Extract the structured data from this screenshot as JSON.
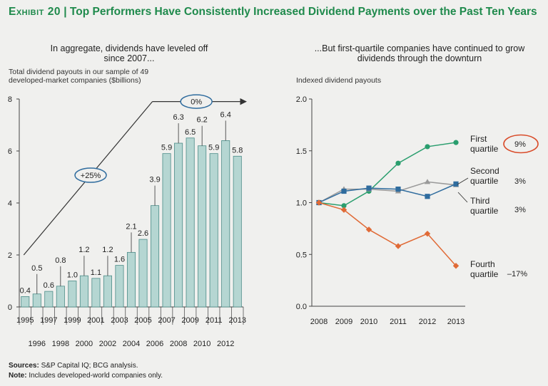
{
  "header": {
    "exhibit": "Exhibit 20",
    "separator": "|",
    "title": "Top Performers Have Consistently Increased Dividend Payments over the Past Ten Years"
  },
  "footer": {
    "sources_label": "Sources:",
    "sources_text": "S&P Capital IQ; BCG analysis.",
    "note_label": "Note:",
    "note_text": "Includes developed-world companies only."
  },
  "chart_data": [
    {
      "type": "bar",
      "title": "In aggregate, dividends have leveled off since 2007...",
      "ylabel": "Total dividend payouts in our sample of 49 developed-market companies ($billions)",
      "xlabel": "",
      "ylim": [
        0,
        8
      ],
      "yticks": [
        0,
        2,
        4,
        6,
        8
      ],
      "categories": [
        "1995",
        "1996",
        "1997",
        "1998",
        "1999",
        "2000",
        "2001",
        "2002",
        "2003",
        "2004",
        "2005",
        "2006",
        "2007",
        "2008",
        "2009",
        "2010",
        "2011",
        "2012",
        "2013"
      ],
      "values": [
        0.4,
        0.5,
        0.6,
        0.8,
        1.0,
        1.2,
        1.1,
        1.2,
        1.6,
        2.1,
        2.6,
        3.9,
        5.9,
        6.3,
        6.5,
        6.2,
        5.9,
        6.4,
        5.8
      ],
      "value_labels": [
        "0.4",
        "0.5",
        "0.6",
        "0.8",
        "1.0",
        "1.2",
        "1.1",
        "1.2",
        "1.6",
        "2.1",
        "2.6",
        "3.9",
        "5.9",
        "6.3",
        "6.5",
        "6.2",
        "5.9",
        "6.4",
        "5.8"
      ],
      "annotations": [
        {
          "text": "+25%",
          "from": "1995",
          "to": "2007"
        },
        {
          "text": "0%",
          "from": "2007",
          "to": "2013"
        }
      ],
      "bar_color": "#b5d6d2",
      "bar_edge": "#4c8c88"
    },
    {
      "type": "line",
      "title": "...But first-quartile companies have continued to grow dividends through the downturn",
      "ylabel": "Indexed dividend payouts",
      "ylim": [
        0.0,
        2.0
      ],
      "yticks": [
        "0.0",
        "0.5",
        "1.0",
        "1.5",
        "2.0"
      ],
      "x": [
        "2008",
        "2009",
        "2010",
        "2011",
        "2012",
        "2013"
      ],
      "series": [
        {
          "name": "First quartile",
          "line1": "First",
          "line2": "quartile",
          "growth": "9%",
          "values": [
            1.0,
            0.97,
            1.11,
            1.38,
            1.54,
            1.58
          ],
          "color": "#2a9e6e",
          "marker": "circle"
        },
        {
          "name": "Second quartile",
          "line1": "Second",
          "line2": "quartile",
          "growth": "3%",
          "values": [
            1.0,
            1.13,
            1.13,
            1.11,
            1.2,
            1.17
          ],
          "color": "#9a9a9a",
          "marker": "triangle"
        },
        {
          "name": "Third quartile",
          "line1": "Third",
          "line2": "quartile",
          "growth": "3%",
          "values": [
            1.0,
            1.11,
            1.14,
            1.13,
            1.06,
            1.18
          ],
          "color": "#2f6c9e",
          "marker": "square"
        },
        {
          "name": "Fourth quartile",
          "line1": "Fourth",
          "line2": "quartile",
          "growth": "–17%",
          "values": [
            1.0,
            0.93,
            0.74,
            0.58,
            0.7,
            0.39
          ],
          "color": "#e06a36",
          "marker": "diamond"
        }
      ],
      "highlight_color": "#d94c2a"
    }
  ]
}
